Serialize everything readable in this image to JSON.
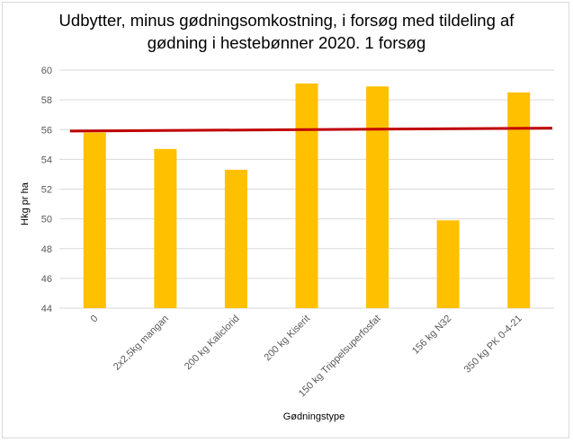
{
  "chart_data": {
    "type": "bar",
    "title_line1": "Udbytter, minus gødningsomkostning, i forsøg med tildeling af",
    "title_line2": "gødning i hestebønner 2020. 1 forsøg",
    "xlabel": "Gødningstype",
    "ylabel": "Hkg pr ha",
    "ylim": [
      44,
      60
    ],
    "yticks": [
      44,
      46,
      48,
      50,
      52,
      54,
      56,
      58,
      60
    ],
    "grid": true,
    "categories": [
      "0",
      "2x2,5kg mangan",
      "200 kg Kaliclorid",
      "200 kg Kiserit",
      "150 kg Trippelsuperfosfat",
      "156 kg N32",
      "350 kg PK 0-4-21"
    ],
    "values": [
      55.8,
      54.7,
      53.3,
      59.1,
      58.9,
      49.9,
      58.5
    ],
    "trendline": {
      "start": 55.9,
      "end": 56.1
    },
    "colors": {
      "bar": "#FFC000",
      "trendline": "#C00000",
      "grid": "#d9d9d9"
    }
  }
}
